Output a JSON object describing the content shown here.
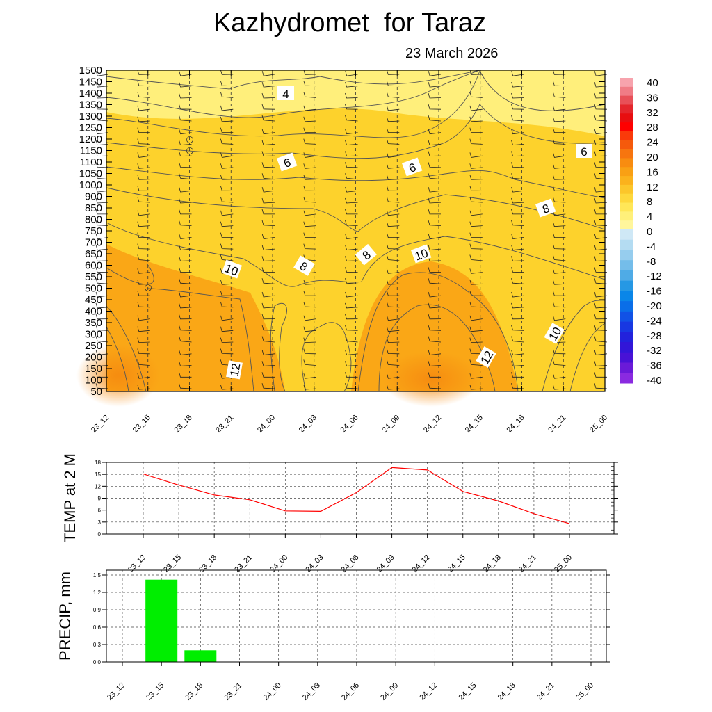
{
  "title": "Kazhydromet  for Taraz",
  "subtitle": "23 March 2026",
  "chart_data": [
    {
      "type": "heatmap",
      "name": "vertical cross-section",
      "x": [
        "23_12",
        "23_15",
        "23_18",
        "23_21",
        "24_00",
        "24_03",
        "24_06",
        "24_09",
        "24_12",
        "24_15",
        "24_18",
        "24_21",
        "25_00"
      ],
      "y_ticks": [
        50,
        100,
        150,
        200,
        250,
        300,
        350,
        400,
        450,
        500,
        550,
        600,
        650,
        700,
        750,
        800,
        850,
        900,
        1000,
        1050,
        1100,
        1150,
        1200,
        1250,
        1300,
        1350,
        1400,
        1450,
        1500
      ],
      "contour_labels": [
        "4",
        "6",
        "6",
        "6",
        "6",
        "8",
        "8",
        "8",
        "8",
        "10",
        "10",
        "10",
        "12",
        "12"
      ],
      "colorbar": {
        "ticks": [
          "40",
          "36",
          "32",
          "28",
          "24",
          "20",
          "16",
          "12",
          "8",
          "4",
          "0",
          "-4",
          "-8",
          "-12",
          "-16",
          "-20",
          "-24",
          "-28",
          "-32",
          "-36",
          "-40"
        ],
        "warm_colors": [
          "#f7a3ad",
          "#f07c86",
          "#e85058",
          "#e4262c",
          "#e80e10",
          "#ff0000",
          "#fa3a0a",
          "#f55a0c",
          "#f7750f",
          "#f88c10",
          "#f9a014",
          "#fbb21c",
          "#fcc62a",
          "#fed83c",
          "#ffe758",
          "#fff07a",
          "#fff69c"
        ],
        "cool_colors": [
          "#cfe8f6",
          "#b4dcf2",
          "#96cdee",
          "#74bdea",
          "#4fabe6",
          "#2698e4",
          "#0a86e8",
          "#0a6ee8",
          "#1152e6",
          "#1838e2",
          "#2222dc",
          "#3216d8",
          "#4812d6",
          "#6a1ad8",
          "#8a2ae0"
        ]
      },
      "field_colors": {
        "cool": "#fff48a",
        "mid": "#fdd22c",
        "warm": "#f9a214",
        "hot": "#f68c10"
      },
      "grid": true
    },
    {
      "type": "line",
      "ylabel": "TEMP at 2 M",
      "x": [
        "23_12",
        "23_15",
        "23_18",
        "23_21",
        "24_00",
        "24_03",
        "24_06",
        "24_09",
        "24_12",
        "24_15",
        "24_18",
        "24_21",
        "25_00"
      ],
      "y_ticks": [
        0,
        3,
        6,
        9,
        12,
        15,
        18
      ],
      "ylim": [
        0,
        18
      ],
      "series": [
        {
          "values": [
            15.1,
            12.3,
            9.8,
            8.6,
            5.8,
            5.7,
            10.4,
            16.7,
            16.1,
            10.7,
            8.3,
            5.1,
            2.6
          ],
          "color": "#ff0000"
        }
      ],
      "grid": true
    },
    {
      "type": "bar",
      "ylabel": "PRECIP, mm",
      "categories": [
        "23_12",
        "23_15",
        "23_18",
        "23_21",
        "24_00",
        "24_03",
        "24_06",
        "24_09",
        "24_12",
        "24_15",
        "24_18",
        "24_21",
        "25_00"
      ],
      "values": [
        0,
        1.42,
        0.2,
        0,
        0,
        0,
        0,
        0,
        0,
        0,
        0,
        0,
        0
      ],
      "y_ticks": [
        "0.0",
        "0.3",
        "0.6",
        "0.9",
        "1.2",
        "1.5"
      ],
      "ylim": [
        0,
        1.5
      ],
      "bar_color": "#00ee00",
      "grid": true
    }
  ]
}
